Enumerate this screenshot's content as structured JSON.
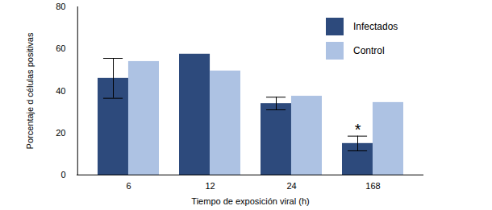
{
  "chart_data": {
    "type": "bar",
    "x_label": "Tiempo de exposición viral (h)",
    "y_label": "Porcentaje d células positivas",
    "categories": [
      "6",
      "12",
      "24",
      "168"
    ],
    "series": [
      {
        "name": "Infectados",
        "color": "#2d4a7c",
        "values": [
          46,
          57.5,
          34,
          15
        ],
        "errors": [
          9.5,
          null,
          3,
          3.5
        ]
      },
      {
        "name": "Control",
        "color": "#adc2e3",
        "values": [
          54,
          49.5,
          37.5,
          34.5
        ]
      }
    ],
    "ylim": [
      0,
      80
    ],
    "yticks": [
      0,
      20,
      40,
      60,
      80
    ],
    "legend": "top-right",
    "annotations": [
      {
        "text": "*",
        "category": "168",
        "series": "Infectados"
      }
    ]
  }
}
